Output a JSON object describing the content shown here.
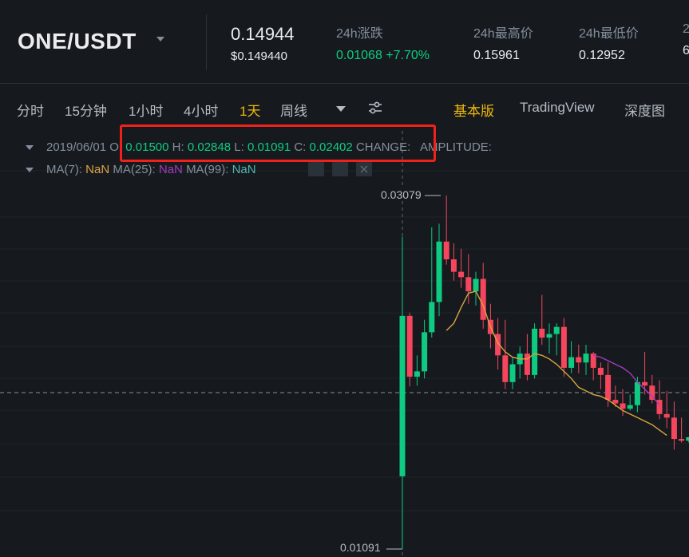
{
  "ticker": {
    "pair": "ONE/USDT",
    "last_price": "0.14944",
    "usd_price": "$0.149440",
    "stats": [
      {
        "label": "24h涨跌",
        "value": "0.01068 +7.70%",
        "trend": "up"
      },
      {
        "label": "24h最高价",
        "value": "0.15961",
        "trend": "neutral"
      },
      {
        "label": "24h最低价",
        "value": "0.12952",
        "trend": "neutral"
      },
      {
        "label": "2",
        "value": "6",
        "trend": "neutral"
      }
    ]
  },
  "toolbar": {
    "intervals": [
      "分时",
      "15分钟",
      "1小时",
      "4小时",
      "1天",
      "周线"
    ],
    "active_interval": "1天",
    "views": [
      "基本版",
      "TradingView",
      "深度图"
    ],
    "active_view": "基本版"
  },
  "legend": {
    "date": "2019/06/01",
    "open_label": "O:",
    "open": "0.01500",
    "high_label": "H:",
    "high": "0.02848",
    "low_label": "L:",
    "low": "0.01091",
    "close_label": "C:",
    "close": "0.02402",
    "change_label": "CHANGE:",
    "amplitude_label": "AMPLITUDE:",
    "ma7_label": "MA(7):",
    "ma7": "NaN",
    "ma25_label": "MA(25):",
    "ma25": "NaN",
    "ma99_label": "MA(99):",
    "ma99": "NaN"
  },
  "price_labels": {
    "high": "0.03079",
    "low": "0.01091"
  },
  "colors": {
    "up": "#0ecb81",
    "down": "#f6465d",
    "accent": "#f0b90b",
    "ma7": "#d9a441",
    "ma25": "#a23bbf",
    "highlight": "#f0211b"
  },
  "chart_data": {
    "type": "candlestick",
    "price_range": [
      0.01091,
      0.03079
    ],
    "candles": [
      {
        "o": 0.015,
        "h": 0.02848,
        "l": 0.01091,
        "c": 0.02402
      },
      {
        "o": 0.02402,
        "h": 0.0242,
        "l": 0.02005,
        "c": 0.0206
      },
      {
        "o": 0.0206,
        "h": 0.0218,
        "l": 0.0201,
        "c": 0.0209
      },
      {
        "o": 0.0209,
        "h": 0.0238,
        "l": 0.0205,
        "c": 0.0231
      },
      {
        "o": 0.0231,
        "h": 0.029,
        "l": 0.0228,
        "c": 0.0248
      },
      {
        "o": 0.0248,
        "h": 0.0292,
        "l": 0.024,
        "c": 0.0282
      },
      {
        "o": 0.0282,
        "h": 0.03079,
        "l": 0.0269,
        "c": 0.0272
      },
      {
        "o": 0.0272,
        "h": 0.0281,
        "l": 0.026,
        "c": 0.0265
      },
      {
        "o": 0.0265,
        "h": 0.0278,
        "l": 0.0256,
        "c": 0.0262
      },
      {
        "o": 0.0262,
        "h": 0.0275,
        "l": 0.0247,
        "c": 0.0254
      },
      {
        "o": 0.0254,
        "h": 0.0265,
        "l": 0.0246,
        "c": 0.0261
      },
      {
        "o": 0.0261,
        "h": 0.027,
        "l": 0.0233,
        "c": 0.0238
      },
      {
        "o": 0.0238,
        "h": 0.0247,
        "l": 0.0222,
        "c": 0.023
      },
      {
        "o": 0.023,
        "h": 0.0239,
        "l": 0.021,
        "c": 0.0218
      },
      {
        "o": 0.0218,
        "h": 0.0238,
        "l": 0.0199,
        "c": 0.0203
      },
      {
        "o": 0.0203,
        "h": 0.0217,
        "l": 0.0199,
        "c": 0.0213
      },
      {
        "o": 0.0213,
        "h": 0.0223,
        "l": 0.0205,
        "c": 0.0219
      },
      {
        "o": 0.0219,
        "h": 0.023,
        "l": 0.0204,
        "c": 0.0207
      },
      {
        "o": 0.0207,
        "h": 0.0236,
        "l": 0.0205,
        "c": 0.0233
      },
      {
        "o": 0.0233,
        "h": 0.0252,
        "l": 0.0224,
        "c": 0.0228
      },
      {
        "o": 0.0228,
        "h": 0.0236,
        "l": 0.0219,
        "c": 0.023
      },
      {
        "o": 0.023,
        "h": 0.0236,
        "l": 0.0218,
        "c": 0.0234
      },
      {
        "o": 0.0234,
        "h": 0.0239,
        "l": 0.0206,
        "c": 0.0211
      },
      {
        "o": 0.0211,
        "h": 0.0226,
        "l": 0.0208,
        "c": 0.0217
      },
      {
        "o": 0.0217,
        "h": 0.0224,
        "l": 0.0208,
        "c": 0.0214
      },
      {
        "o": 0.0214,
        "h": 0.0224,
        "l": 0.0207,
        "c": 0.0219
      },
      {
        "o": 0.0219,
        "h": 0.022,
        "l": 0.0204,
        "c": 0.0211
      },
      {
        "o": 0.0211,
        "h": 0.0214,
        "l": 0.0199,
        "c": 0.0207
      },
      {
        "o": 0.0207,
        "h": 0.0214,
        "l": 0.0189,
        "c": 0.0193
      },
      {
        "o": 0.0193,
        "h": 0.0201,
        "l": 0.0189,
        "c": 0.0191
      },
      {
        "o": 0.0191,
        "h": 0.0199,
        "l": 0.0184,
        "c": 0.0188
      },
      {
        "o": 0.0188,
        "h": 0.0196,
        "l": 0.0187,
        "c": 0.019
      },
      {
        "o": 0.019,
        "h": 0.0206,
        "l": 0.0186,
        "c": 0.0203
      },
      {
        "o": 0.0203,
        "h": 0.022,
        "l": 0.0196,
        "c": 0.0201
      },
      {
        "o": 0.0201,
        "h": 0.0207,
        "l": 0.0191,
        "c": 0.0193
      },
      {
        "o": 0.0193,
        "h": 0.0204,
        "l": 0.0182,
        "c": 0.0185
      },
      {
        "o": 0.0185,
        "h": 0.0198,
        "l": 0.0177,
        "c": 0.0183
      },
      {
        "o": 0.0183,
        "h": 0.0192,
        "l": 0.0165,
        "c": 0.0171
      },
      {
        "o": 0.0171,
        "h": 0.0183,
        "l": 0.0169,
        "c": 0.017
      },
      {
        "o": 0.017,
        "h": 0.0172,
        "l": 0.0169,
        "c": 0.0172
      }
    ],
    "ma7": [
      0.0232,
      0.0236,
      0.0245,
      0.0253,
      0.0254,
      0.0246,
      0.0234,
      0.0225,
      0.022,
      0.0217,
      0.0216,
      0.0216,
      0.0219,
      0.0218,
      0.0216,
      0.0213,
      0.0209,
      0.0205,
      0.02,
      0.0198,
      0.0196,
      0.0195,
      0.0193,
      0.019,
      0.0187,
      0.0185,
      0.0183,
      0.0181,
      0.0179,
      0.0176,
      0.0173
    ],
    "ma25": [
      0.0218,
      0.0217,
      0.0215,
      0.0213,
      0.0211,
      0.0208,
      0.0203,
      0.0199,
      0.0195,
      0.019
    ]
  }
}
